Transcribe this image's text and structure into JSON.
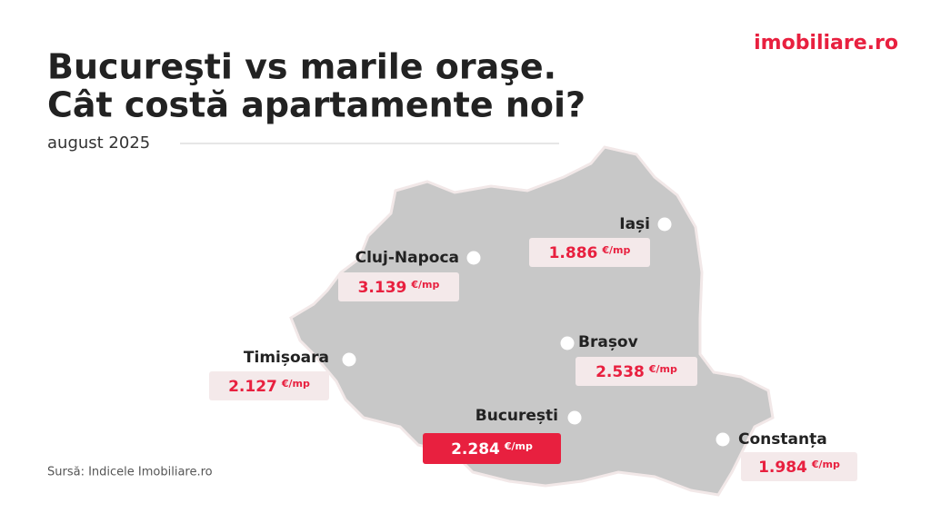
{
  "header": {
    "title_lines": [
      "Bucureşti vs marile oraşe.",
      "Cât costă apartamente noi?"
    ],
    "subtitle": "august 2025",
    "logo": "imobiliare.ro"
  },
  "cities": [
    {
      "name": "Cluj-Napoca",
      "price": "3.139",
      "unit": "€/mp"
    },
    {
      "name": "Iași",
      "price": "1.886",
      "unit": "€/mp"
    },
    {
      "name": "Brașov",
      "price": "2.538",
      "unit": "€/mp"
    },
    {
      "name": "Timișoara",
      "price": "2.127",
      "unit": "€/mp"
    },
    {
      "name": "București",
      "price": "2.284",
      "unit": "€/mp"
    },
    {
      "name": "Constanța",
      "price": "1.984",
      "unit": "€/mp"
    }
  ],
  "source": "Sursă: Indicele Imobiliare.ro"
}
